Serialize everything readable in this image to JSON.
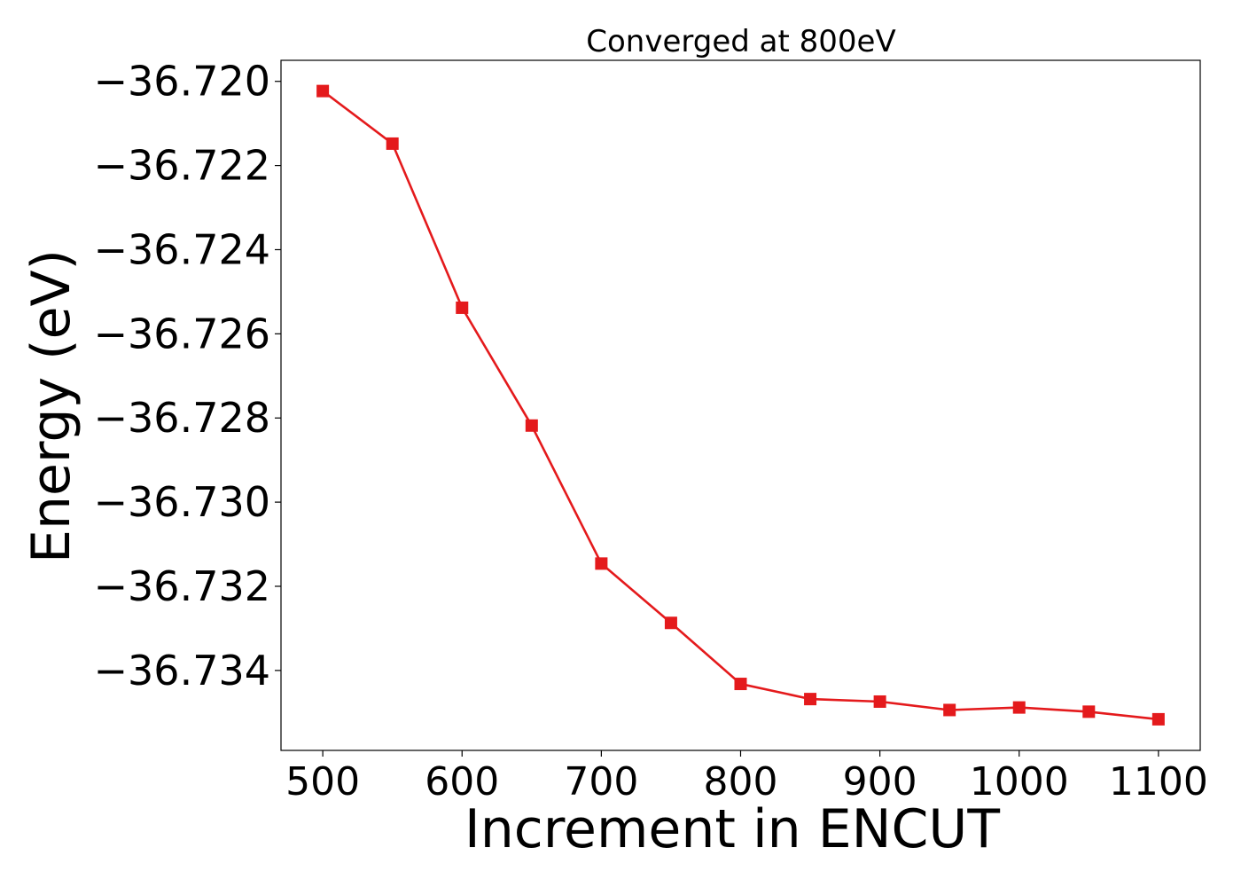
{
  "chart_data": {
    "type": "line",
    "title": "Converged at 800eV",
    "xlabel": "Increment in ENCUT",
    "ylabel": "Energy (eV)",
    "xlim": [
      470,
      1130
    ],
    "ylim": [
      -36.7359,
      -36.7195
    ],
    "xticks": [
      500,
      600,
      700,
      800,
      900,
      1000,
      1100
    ],
    "yticks": [
      -36.72,
      -36.722,
      -36.724,
      -36.726,
      -36.728,
      -36.73,
      -36.732,
      -36.734
    ],
    "ytick_labels": [
      "−36.720",
      "−36.722",
      "−36.724",
      "−36.726",
      "−36.728",
      "−36.730",
      "−36.732",
      "−36.734"
    ],
    "grid": false,
    "series": [
      {
        "color": "#e41a1c",
        "marker": "square",
        "x": [
          500,
          550,
          600,
          650,
          700,
          750,
          800,
          850,
          900,
          950,
          1000,
          1050,
          1100
        ],
        "y": [
          -36.72023,
          -36.72148,
          -36.72538,
          -36.72818,
          -36.73146,
          -36.73287,
          -36.73432,
          -36.73468,
          -36.73474,
          -36.73494,
          -36.73488,
          -36.73498,
          -36.73516
        ]
      }
    ]
  }
}
